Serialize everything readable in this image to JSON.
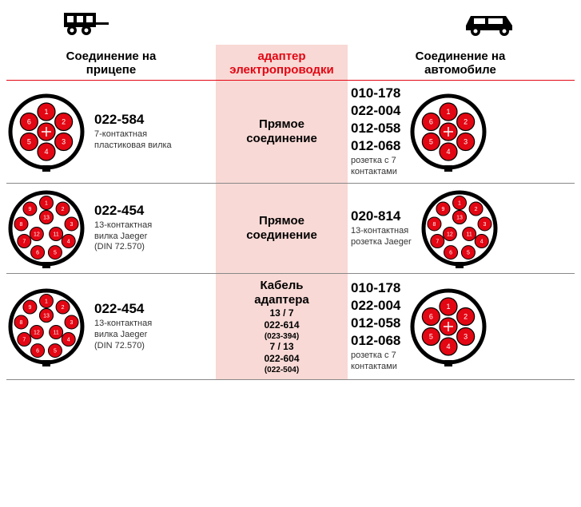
{
  "colors": {
    "accent": "#e30613",
    "pin_fill": "#e30613",
    "pin_stroke": "#000000",
    "outer": "#000000",
    "band_bg": "#F8D9D5",
    "text": "#000000",
    "desc": "#333333"
  },
  "header": {
    "left": "Соединение на\nприцепе",
    "mid": "адаптер\nэлектропроводки",
    "right": "Соединение на\nавтомобиле"
  },
  "rows": [
    {
      "left": {
        "pins": 7,
        "code": "022-584",
        "desc": "7-контактная\nпластиковая вилка"
      },
      "mid": {
        "lines": [
          "Прямое",
          "соединение"
        ],
        "style": "title"
      },
      "right": {
        "pins": 7,
        "codes": [
          "010-178",
          "022-004",
          "012-058",
          "012-068"
        ],
        "desc": "розетка с 7\nконтактами"
      }
    },
    {
      "left": {
        "pins": 13,
        "code": "022-454",
        "desc": "13-контактная\nвилка Jaeger\n(DIN 72.570)"
      },
      "mid": {
        "lines": [
          "Прямое",
          "соединение"
        ],
        "style": "title"
      },
      "right": {
        "pins": 13,
        "codes": [
          "020-814"
        ],
        "desc": "13-контактная\nрозетка Jaeger"
      }
    },
    {
      "left": {
        "pins": 13,
        "code": "022-454",
        "desc": "13-контактная\nвилка Jaeger\n(DIN 72.570)"
      },
      "mid": {
        "lines": [
          "Кабель",
          "адаптера",
          "13 / 7",
          "022-614",
          "(023-394)",
          "7 / 13",
          "022-604",
          "(022-504)"
        ],
        "style": "cable"
      },
      "right": {
        "pins": 7,
        "codes": [
          "010-178",
          "022-004",
          "012-058",
          "012-068"
        ],
        "desc": "розетка с 7\nконтактами"
      }
    }
  ]
}
